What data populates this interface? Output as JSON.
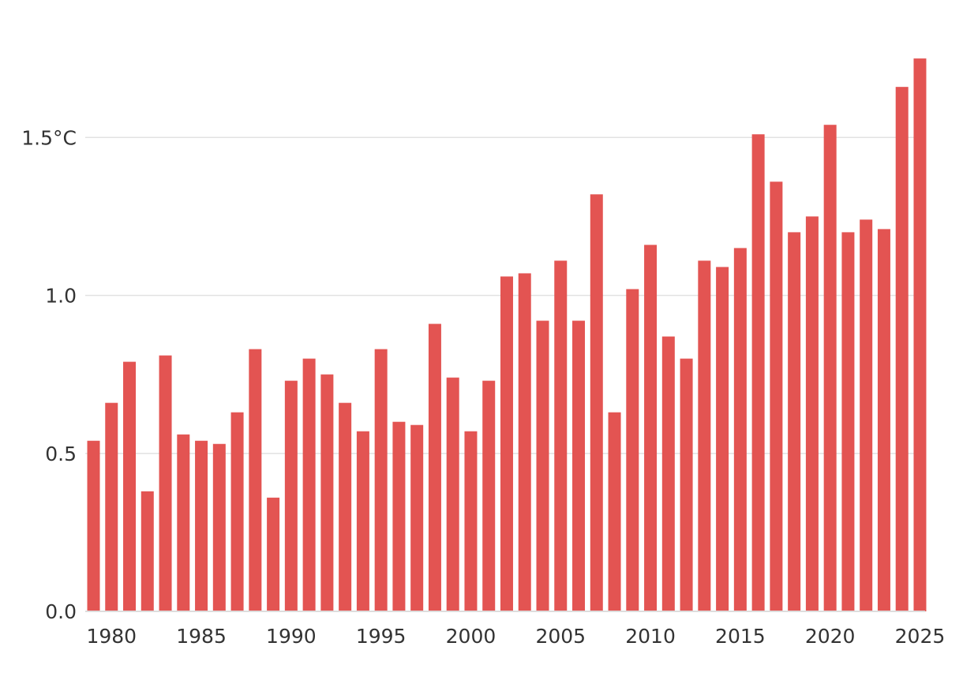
{
  "chart_data": {
    "type": "bar",
    "title": "",
    "xlabel": "",
    "ylabel": "",
    "unit": "°C",
    "bar_color": "#e35452",
    "grid": true,
    "ylim": [
      0,
      1.75
    ],
    "y_ticks": [
      {
        "value": 0.0,
        "label": "0.0"
      },
      {
        "value": 0.5,
        "label": "0.5"
      },
      {
        "value": 1.0,
        "label": "1.0"
      },
      {
        "value": 1.5,
        "label": "1.5°C"
      }
    ],
    "x_tick_labels": [
      "1980",
      "1985",
      "1990",
      "1995",
      "2000",
      "2005",
      "2010",
      "2015",
      "2020",
      "2025"
    ],
    "categories": [
      1979,
      1980,
      1981,
      1982,
      1983,
      1984,
      1985,
      1986,
      1987,
      1988,
      1989,
      1990,
      1991,
      1992,
      1993,
      1994,
      1995,
      1996,
      1997,
      1998,
      1999,
      2000,
      2001,
      2002,
      2003,
      2004,
      2005,
      2006,
      2007,
      2008,
      2009,
      2010,
      2011,
      2012,
      2013,
      2014,
      2015,
      2016,
      2017,
      2018,
      2019,
      2020,
      2021,
      2022,
      2023,
      2024,
      2025
    ],
    "values": [
      0.54,
      0.66,
      0.79,
      0.38,
      0.81,
      0.56,
      0.54,
      0.53,
      0.63,
      0.83,
      0.36,
      0.73,
      0.8,
      0.75,
      0.66,
      0.57,
      0.83,
      0.6,
      0.59,
      0.91,
      0.74,
      0.57,
      0.73,
      1.06,
      1.07,
      0.92,
      1.11,
      0.92,
      1.32,
      0.63,
      1.02,
      1.16,
      0.87,
      0.8,
      1.11,
      1.09,
      1.15,
      1.51,
      1.36,
      1.2,
      1.25,
      1.54,
      1.2,
      1.24,
      1.21,
      1.66,
      1.75
    ]
  }
}
